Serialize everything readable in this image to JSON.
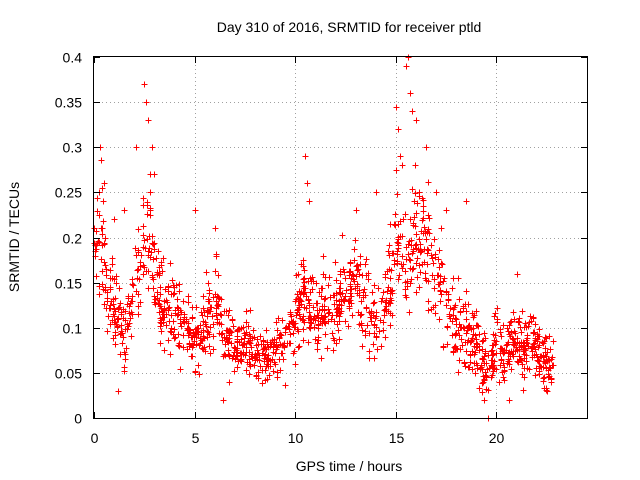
{
  "chart_data": {
    "type": "scatter",
    "title": "Day 310 of 2016, SRMTID for receiver ptld",
    "xlabel": "GPS time / hours",
    "ylabel": "SRMTID / TECUs",
    "xlim": [
      0,
      24.5
    ],
    "ylim": [
      0,
      0.4
    ],
    "grid": true,
    "marker": "plus",
    "color": "#ff0000",
    "x_ticks": [
      0,
      5,
      10,
      15,
      20
    ],
    "x_tick_labels": [
      "0",
      "5",
      "10",
      "15",
      "20"
    ],
    "y_ticks": [
      0,
      0.05,
      0.1,
      0.15,
      0.2,
      0.25,
      0.3,
      0.35,
      0.4
    ],
    "y_tick_labels": [
      "0",
      "0.05",
      "0.1",
      "0.15",
      "0.2",
      "0.25",
      "0.3",
      "0.35",
      "0.4"
    ],
    "series": [
      {
        "name": "SRMTID",
        "trend": [
          {
            "x": 0.0,
            "y": 0.19
          },
          {
            "x": 0.3,
            "y": 0.22
          },
          {
            "x": 0.6,
            "y": 0.14
          },
          {
            "x": 1.0,
            "y": 0.12
          },
          {
            "x": 1.5,
            "y": 0.09
          },
          {
            "x": 2.0,
            "y": 0.14
          },
          {
            "x": 2.5,
            "y": 0.22
          },
          {
            "x": 3.0,
            "y": 0.17
          },
          {
            "x": 3.5,
            "y": 0.11
          },
          {
            "x": 4.0,
            "y": 0.12
          },
          {
            "x": 4.5,
            "y": 0.1
          },
          {
            "x": 5.0,
            "y": 0.09
          },
          {
            "x": 5.5,
            "y": 0.1
          },
          {
            "x": 6.0,
            "y": 0.14
          },
          {
            "x": 6.5,
            "y": 0.09
          },
          {
            "x": 7.0,
            "y": 0.08
          },
          {
            "x": 7.5,
            "y": 0.09
          },
          {
            "x": 8.0,
            "y": 0.07
          },
          {
            "x": 8.5,
            "y": 0.065
          },
          {
            "x": 9.0,
            "y": 0.075
          },
          {
            "x": 9.5,
            "y": 0.08
          },
          {
            "x": 10.0,
            "y": 0.11
          },
          {
            "x": 10.5,
            "y": 0.14
          },
          {
            "x": 11.0,
            "y": 0.11
          },
          {
            "x": 11.5,
            "y": 0.12
          },
          {
            "x": 12.0,
            "y": 0.13
          },
          {
            "x": 12.5,
            "y": 0.14
          },
          {
            "x": 13.0,
            "y": 0.15
          },
          {
            "x": 13.5,
            "y": 0.13
          },
          {
            "x": 14.0,
            "y": 0.11
          },
          {
            "x": 14.5,
            "y": 0.13
          },
          {
            "x": 15.0,
            "y": 0.2
          },
          {
            "x": 15.5,
            "y": 0.17
          },
          {
            "x": 16.0,
            "y": 0.21
          },
          {
            "x": 16.5,
            "y": 0.19
          },
          {
            "x": 17.0,
            "y": 0.15
          },
          {
            "x": 17.5,
            "y": 0.13
          },
          {
            "x": 18.0,
            "y": 0.1
          },
          {
            "x": 18.5,
            "y": 0.09
          },
          {
            "x": 19.0,
            "y": 0.08
          },
          {
            "x": 19.5,
            "y": 0.05
          },
          {
            "x": 20.0,
            "y": 0.09
          },
          {
            "x": 20.5,
            "y": 0.07
          },
          {
            "x": 21.0,
            "y": 0.08
          },
          {
            "x": 21.5,
            "y": 0.09
          },
          {
            "x": 22.0,
            "y": 0.08
          },
          {
            "x": 22.5,
            "y": 0.06
          },
          {
            "x": 22.8,
            "y": 0.06
          }
        ],
        "points": [
          {
            "x": 0.3,
            "y": 0.3
          },
          {
            "x": 0.4,
            "y": 0.255
          },
          {
            "x": 0.5,
            "y": 0.26
          },
          {
            "x": 1.0,
            "y": 0.22
          },
          {
            "x": 1.5,
            "y": 0.23
          },
          {
            "x": 2.1,
            "y": 0.3
          },
          {
            "x": 2.5,
            "y": 0.37
          },
          {
            "x": 2.6,
            "y": 0.35
          },
          {
            "x": 2.7,
            "y": 0.33
          },
          {
            "x": 2.8,
            "y": 0.27
          },
          {
            "x": 2.9,
            "y": 0.3
          },
          {
            "x": 3.0,
            "y": 0.27
          },
          {
            "x": 5.0,
            "y": 0.23
          },
          {
            "x": 6.0,
            "y": 0.21
          },
          {
            "x": 10.5,
            "y": 0.29
          },
          {
            "x": 10.6,
            "y": 0.26
          },
          {
            "x": 10.7,
            "y": 0.24
          },
          {
            "x": 13.0,
            "y": 0.23
          },
          {
            "x": 14.0,
            "y": 0.25
          },
          {
            "x": 15.0,
            "y": 0.345
          },
          {
            "x": 15.1,
            "y": 0.32
          },
          {
            "x": 15.2,
            "y": 0.29
          },
          {
            "x": 15.3,
            "y": 0.28
          },
          {
            "x": 15.5,
            "y": 0.39
          },
          {
            "x": 15.6,
            "y": 0.4
          },
          {
            "x": 15.7,
            "y": 0.36
          },
          {
            "x": 15.8,
            "y": 0.34
          },
          {
            "x": 16.0,
            "y": 0.33
          },
          {
            "x": 16.5,
            "y": 0.3
          },
          {
            "x": 17.0,
            "y": 0.25
          },
          {
            "x": 17.5,
            "y": 0.23
          },
          {
            "x": 18.5,
            "y": 0.24
          },
          {
            "x": 1.2,
            "y": 0.03
          },
          {
            "x": 6.4,
            "y": 0.02
          },
          {
            "x": 19.6,
            "y": 0.0
          },
          {
            "x": 19.4,
            "y": 0.02
          },
          {
            "x": 20.6,
            "y": 0.02
          },
          {
            "x": 21.0,
            "y": 0.16
          },
          {
            "x": 22.5,
            "y": 0.03
          }
        ]
      }
    ]
  }
}
